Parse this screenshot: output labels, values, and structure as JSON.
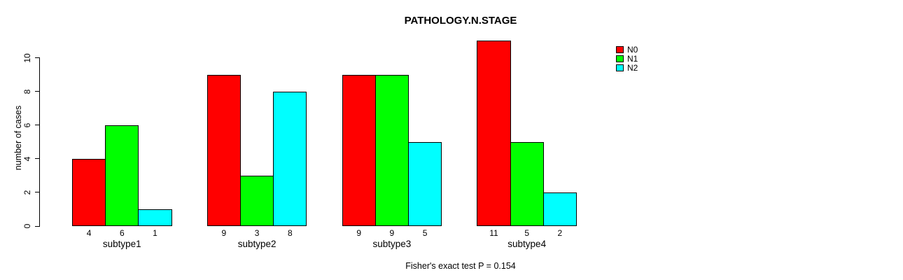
{
  "chart_data": {
    "type": "bar",
    "title": "PATHOLOGY.N.STAGE",
    "xlabel": "",
    "ylabel": "number of cases",
    "categories": [
      "subtype1",
      "subtype2",
      "subtype3",
      "subtype4"
    ],
    "series": [
      {
        "name": "N0",
        "color": "#FF0000",
        "values": [
          4,
          9,
          9,
          11
        ]
      },
      {
        "name": "N1",
        "color": "#00FF00",
        "values": [
          6,
          3,
          9,
          5
        ]
      },
      {
        "name": "N2",
        "color": "#00FFFF",
        "values": [
          1,
          8,
          5,
          2
        ]
      }
    ],
    "bar_value_labels": [
      [
        "4",
        "6",
        "1"
      ],
      [
        "9",
        "3",
        "8"
      ],
      [
        "9",
        "9",
        "5"
      ],
      [
        "11",
        "5",
        "2"
      ]
    ],
    "yticks": [
      0,
      2,
      4,
      6,
      8,
      10
    ],
    "ylim": [
      0,
      11
    ],
    "grid": false,
    "legend_position": "top-right",
    "legend_entries": [
      "N0",
      "N1",
      "N2"
    ],
    "annotation": "Fisher's exact test P = 0.154"
  }
}
